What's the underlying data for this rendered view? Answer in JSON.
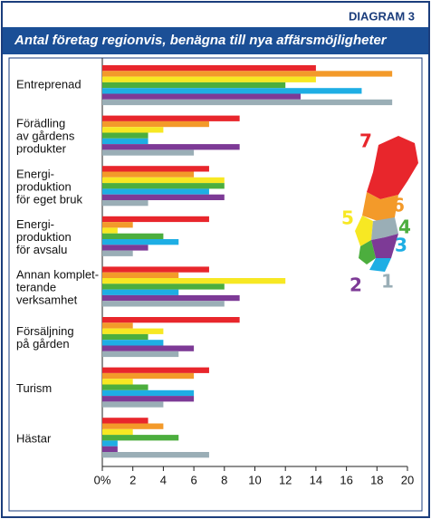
{
  "chart_data": {
    "type": "bar",
    "orientation": "horizontal",
    "badge": "DIAGRAM 3",
    "title": "Antal företag regionvis, benägna till nya affärsmöjligheter",
    "categories": [
      "Entreprenad",
      "Förädling\nav gårdens\nprodukter",
      "Energi-\nproduktion\nför eget bruk",
      "Energi-\nproduktion\nför avsalu",
      "Annan komplet-\nterande\nverksamhet",
      "Försäljning\npå gården",
      "Turism",
      "Hästar"
    ],
    "series": [
      {
        "name": "7",
        "color": "#e8262c",
        "values": [
          14,
          9,
          7,
          7,
          7,
          9,
          7,
          3
        ]
      },
      {
        "name": "6",
        "color": "#f39a2a",
        "values": [
          19,
          7,
          6,
          2,
          5,
          2,
          6,
          4
        ]
      },
      {
        "name": "5",
        "color": "#f7e823",
        "values": [
          14,
          4,
          8,
          1,
          12,
          4,
          2,
          2
        ]
      },
      {
        "name": "4",
        "color": "#4cae3e",
        "values": [
          12,
          3,
          8,
          4,
          8,
          3,
          3,
          5
        ]
      },
      {
        "name": "3",
        "color": "#1eaee4",
        "values": [
          17,
          3,
          7,
          5,
          5,
          4,
          6,
          1
        ]
      },
      {
        "name": "2",
        "color": "#7d3a96",
        "values": [
          13,
          9,
          8,
          3,
          9,
          6,
          6,
          1
        ]
      },
      {
        "name": "1",
        "color": "#9aaeb6",
        "values": [
          19,
          6,
          3,
          2,
          8,
          5,
          4,
          7
        ]
      }
    ],
    "xlim": [
      0,
      20
    ],
    "xticks": [
      {
        "value": 0,
        "label": "0%"
      },
      2,
      4,
      6,
      8,
      10,
      12,
      14,
      16,
      18,
      20
    ],
    "grid": false
  }
}
